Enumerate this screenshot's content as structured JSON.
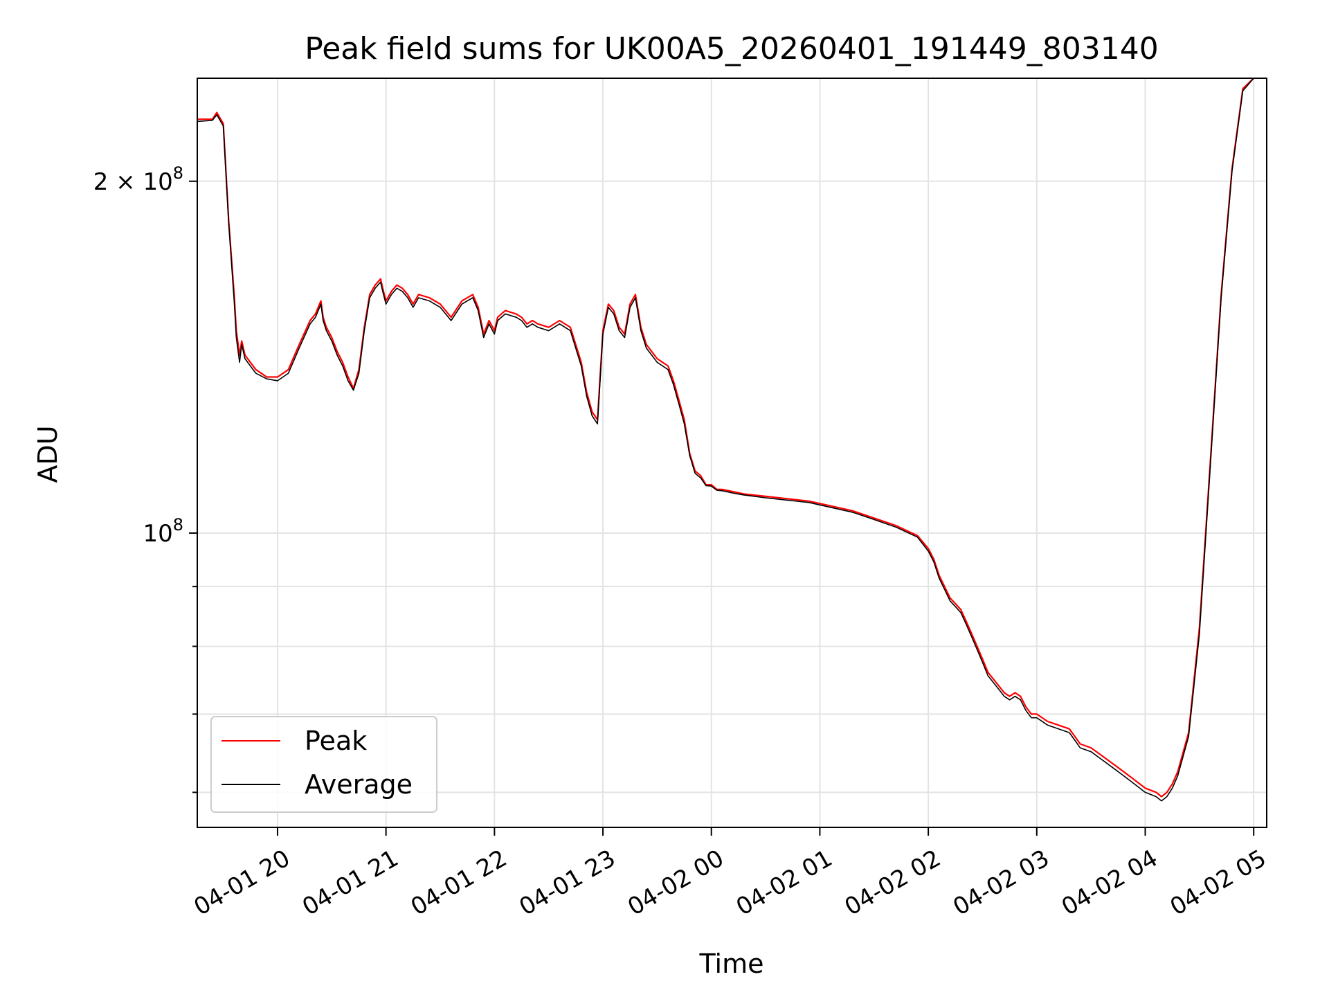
{
  "chart_data": {
    "type": "line",
    "title": "Peak field sums for UK00A5_20260401_191449_803140",
    "xlabel": "Time",
    "ylabel": "ADU",
    "yscale": "log",
    "ylim": [
      56000000,
      245000000
    ],
    "xlim_hours": [
      -0.74,
      9.12
    ],
    "grid": true,
    "legend_loc": "lower-left",
    "x_ticks": [
      {
        "h": 0,
        "label": "04-01 20"
      },
      {
        "h": 1,
        "label": "04-01 21"
      },
      {
        "h": 2,
        "label": "04-01 22"
      },
      {
        "h": 3,
        "label": "04-01 23"
      },
      {
        "h": 4,
        "label": "04-02 00"
      },
      {
        "h": 5,
        "label": "04-02 01"
      },
      {
        "h": 6,
        "label": "04-02 02"
      },
      {
        "h": 7,
        "label": "04-02 03"
      },
      {
        "h": 8,
        "label": "04-02 04"
      },
      {
        "h": 9,
        "label": "04-02 05"
      }
    ],
    "y_major_ticks": [
      {
        "value": 100000000,
        "base": "10",
        "exp": "8",
        "prefix": ""
      },
      {
        "value": 200000000,
        "base": "10",
        "exp": "8",
        "prefix": "2 × "
      }
    ],
    "y_minor_ticks": [
      60000000,
      70000000,
      80000000,
      90000000
    ],
    "series": [
      {
        "name": "Peak",
        "color": "#ff0000",
        "x_hours": [
          -0.74,
          -0.6,
          -0.56,
          -0.5,
          -0.45,
          -0.4,
          -0.38,
          -0.35,
          -0.33,
          -0.3,
          -0.2,
          -0.1,
          0.0,
          0.1,
          0.2,
          0.3,
          0.35,
          0.4,
          0.42,
          0.45,
          0.5,
          0.55,
          0.6,
          0.65,
          0.7,
          0.75,
          0.8,
          0.85,
          0.9,
          0.95,
          0.97,
          1.0,
          1.05,
          1.1,
          1.15,
          1.2,
          1.25,
          1.3,
          1.4,
          1.5,
          1.6,
          1.7,
          1.8,
          1.85,
          1.9,
          1.95,
          2.0,
          2.03,
          2.1,
          2.2,
          2.25,
          2.3,
          2.35,
          2.4,
          2.5,
          2.6,
          2.7,
          2.8,
          2.85,
          2.9,
          2.95,
          3.0,
          3.05,
          3.1,
          3.15,
          3.2,
          3.25,
          3.3,
          3.35,
          3.4,
          3.45,
          3.5,
          3.55,
          3.6,
          3.65,
          3.7,
          3.75,
          3.8,
          3.85,
          3.9,
          3.95,
          4.0,
          4.05,
          4.1,
          4.2,
          4.3,
          4.5,
          4.7,
          4.9,
          5.1,
          5.3,
          5.5,
          5.7,
          5.9,
          6.0,
          6.05,
          6.1,
          6.15,
          6.2,
          6.25,
          6.3,
          6.35,
          6.4,
          6.45,
          6.5,
          6.55,
          6.6,
          6.65,
          6.7,
          6.75,
          6.8,
          6.85,
          6.9,
          6.95,
          7.0,
          7.1,
          7.2,
          7.3,
          7.35,
          7.4,
          7.5,
          7.6,
          7.7,
          7.8,
          7.9,
          8.0,
          8.1,
          8.15,
          8.2,
          8.25,
          8.3,
          8.4,
          8.5,
          8.6,
          8.7,
          8.8,
          8.9,
          9.0
        ],
        "values": [
          226000000,
          226000000,
          229000000,
          224000000,
          185000000,
          160000000,
          149000000,
          142000000,
          146000000,
          142000000,
          138000000,
          136000000,
          136000000,
          138000000,
          145000000,
          152000000,
          154000000,
          158000000,
          153000000,
          150000000,
          147000000,
          143000000,
          140000000,
          136000000,
          133000000,
          138000000,
          150000000,
          160000000,
          163000000,
          165000000,
          162000000,
          158000000,
          161000000,
          163000000,
          162000000,
          160000000,
          157000000,
          160000000,
          159000000,
          157000000,
          153000000,
          158000000,
          160000000,
          156000000,
          148000000,
          152000000,
          149000000,
          153000000,
          155000000,
          154000000,
          153000000,
          151000000,
          152000000,
          151000000,
          150000000,
          152000000,
          150000000,
          140000000,
          132000000,
          127000000,
          125000000,
          149000000,
          157000000,
          155000000,
          150000000,
          148000000,
          157000000,
          160000000,
          150000000,
          145000000,
          143000000,
          141000000,
          140000000,
          139000000,
          135000000,
          130000000,
          125000000,
          117000000,
          113000000,
          112000000,
          110000000,
          110000000,
          109000000,
          109000000,
          108500000,
          108000000,
          107500000,
          107000000,
          106500000,
          105500000,
          104500000,
          103000000,
          101500000,
          99500000,
          97000000,
          95000000,
          92000000,
          90000000,
          88000000,
          87000000,
          86000000,
          84000000,
          82000000,
          80000000,
          78000000,
          76000000,
          75000000,
          74000000,
          73000000,
          72500000,
          73000000,
          72500000,
          71000000,
          70000000,
          70000000,
          69000000,
          68500000,
          68000000,
          67000000,
          66000000,
          65500000,
          64500000,
          63500000,
          62500000,
          61500000,
          60500000,
          60000000,
          59500000,
          60000000,
          61000000,
          62500000,
          67500000,
          83000000,
          115000000,
          160000000,
          205000000,
          240000000,
          245000000
        ]
      },
      {
        "name": "Average",
        "color": "#000000",
        "x_hours": [
          -0.74,
          -0.6,
          -0.56,
          -0.5,
          -0.45,
          -0.4,
          -0.38,
          -0.35,
          -0.33,
          -0.3,
          -0.2,
          -0.1,
          0.0,
          0.1,
          0.2,
          0.3,
          0.35,
          0.4,
          0.42,
          0.45,
          0.5,
          0.55,
          0.6,
          0.65,
          0.7,
          0.75,
          0.8,
          0.85,
          0.9,
          0.95,
          0.97,
          1.0,
          1.05,
          1.1,
          1.15,
          1.2,
          1.25,
          1.3,
          1.4,
          1.5,
          1.6,
          1.7,
          1.8,
          1.85,
          1.9,
          1.95,
          2.0,
          2.03,
          2.1,
          2.2,
          2.25,
          2.3,
          2.35,
          2.4,
          2.5,
          2.6,
          2.7,
          2.8,
          2.85,
          2.9,
          2.95,
          3.0,
          3.05,
          3.1,
          3.15,
          3.2,
          3.25,
          3.3,
          3.35,
          3.4,
          3.45,
          3.5,
          3.55,
          3.6,
          3.65,
          3.7,
          3.75,
          3.8,
          3.85,
          3.9,
          3.95,
          4.0,
          4.05,
          4.1,
          4.2,
          4.3,
          4.5,
          4.7,
          4.9,
          5.1,
          5.3,
          5.5,
          5.7,
          5.9,
          6.0,
          6.05,
          6.1,
          6.15,
          6.2,
          6.25,
          6.3,
          6.35,
          6.4,
          6.45,
          6.5,
          6.55,
          6.6,
          6.65,
          6.7,
          6.75,
          6.8,
          6.85,
          6.9,
          6.95,
          7.0,
          7.1,
          7.2,
          7.3,
          7.35,
          7.4,
          7.5,
          7.6,
          7.7,
          7.8,
          7.9,
          8.0,
          8.1,
          8.15,
          8.2,
          8.25,
          8.3,
          8.4,
          8.5,
          8.6,
          8.7,
          8.8,
          8.9,
          9.0
        ],
        "values": [
          225000000,
          225500000,
          228000000,
          223000000,
          184000000,
          158000000,
          147000000,
          140000000,
          145000000,
          141000000,
          137000000,
          135500000,
          135000000,
          137000000,
          144000000,
          151000000,
          153000000,
          157000000,
          152000000,
          149000000,
          146000000,
          142000000,
          139000000,
          135000000,
          132500000,
          137000000,
          149000000,
          159000000,
          162000000,
          164000000,
          161000000,
          157000000,
          160000000,
          162000000,
          161000000,
          159000000,
          156000000,
          159000000,
          158000000,
          156000000,
          152000000,
          157000000,
          159000000,
          155000000,
          147000000,
          151000000,
          148000000,
          152000000,
          154000000,
          153000000,
          152000000,
          150000000,
          151000000,
          150000000,
          149000000,
          151000000,
          149000000,
          139000000,
          131000000,
          126000000,
          124000000,
          148000000,
          156000000,
          154000000,
          149000000,
          147000000,
          156000000,
          159000000,
          149000000,
          144000000,
          142000000,
          140000000,
          139000000,
          138000000,
          134000000,
          129000000,
          124000000,
          116500000,
          112500000,
          111500000,
          109800000,
          109700000,
          108800000,
          108700000,
          108200000,
          107800000,
          107200000,
          106700000,
          106200000,
          105200000,
          104200000,
          102700000,
          101200000,
          99200000,
          96500000,
          94500000,
          91500000,
          89500000,
          87500000,
          86500000,
          85500000,
          83500000,
          81500000,
          79500000,
          77500000,
          75500000,
          74500000,
          73500000,
          72500000,
          72000000,
          72500000,
          72000000,
          70500000,
          69500000,
          69500000,
          68500000,
          68000000,
          67500000,
          66500000,
          65500000,
          65000000,
          64000000,
          63000000,
          62000000,
          61000000,
          60000000,
          59500000,
          59000000,
          59500000,
          60500000,
          62000000,
          67000000,
          82000000,
          114000000,
          159000000,
          204000000,
          239000000,
          245000000
        ]
      }
    ]
  }
}
